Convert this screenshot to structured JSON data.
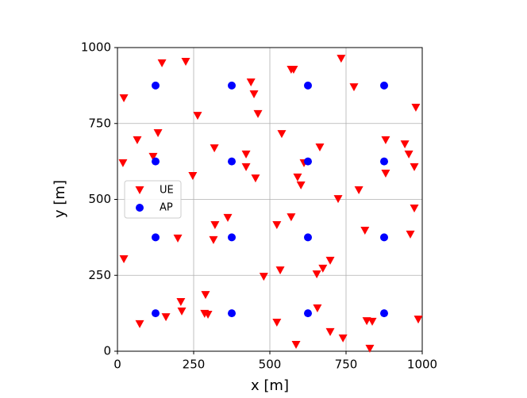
{
  "chart_data": {
    "type": "scatter",
    "xlabel": "x [m]",
    "ylabel": "y [m]",
    "xlim": [
      0,
      1000
    ],
    "ylim": [
      0,
      1000
    ],
    "xticks": [
      0,
      250,
      500,
      750,
      1000
    ],
    "yticks": [
      0,
      250,
      500,
      750,
      1000
    ],
    "grid": true,
    "legend": "center left",
    "series": [
      {
        "name": "UE",
        "color": "#ff0000",
        "marker": "triangle-down",
        "x": [
          146,
          224,
          21,
          438,
          448,
          461,
          263,
          570,
          578,
          734,
          776,
          979,
          65,
          133,
          117,
          18,
          318,
          422,
          422,
          453,
          247,
          539,
          664,
          612,
          591,
          602,
          724,
          792,
          880,
          943,
          956,
          974,
          880,
          974,
          961,
          812,
          362,
          320,
          315,
          198,
          523,
          570,
          21,
          480,
          534,
          698,
          674,
          654,
          289,
          208,
          211,
          286,
          297,
          159,
          73,
          523,
          656,
          698,
          740,
          586,
          818,
          836,
          828,
          987
        ],
        "y": [
          948,
          953,
          833,
          885,
          846,
          781,
          775,
          927,
          927,
          963,
          869,
          802,
          695,
          718,
          640,
          619,
          668,
          648,
          606,
          569,
          577,
          715,
          671,
          619,
          572,
          546,
          501,
          530,
          695,
          681,
          648,
          606,
          585,
          470,
          384,
          397,
          439,
          415,
          366,
          371,
          415,
          441,
          303,
          245,
          266,
          298,
          272,
          253,
          185,
          162,
          131,
          123,
          120,
          112,
          89,
          94,
          141,
          63,
          42,
          21,
          99,
          97,
          8,
          104
        ]
      },
      {
        "name": "AP",
        "color": "#0000ff",
        "marker": "circle",
        "x": [
          125,
          375,
          625,
          875,
          125,
          375,
          625,
          875,
          125,
          375,
          625,
          875,
          125,
          375,
          625,
          875
        ],
        "y": [
          875,
          875,
          875,
          875,
          625,
          625,
          625,
          625,
          375,
          375,
          375,
          375,
          125,
          125,
          125,
          125
        ]
      }
    ]
  }
}
